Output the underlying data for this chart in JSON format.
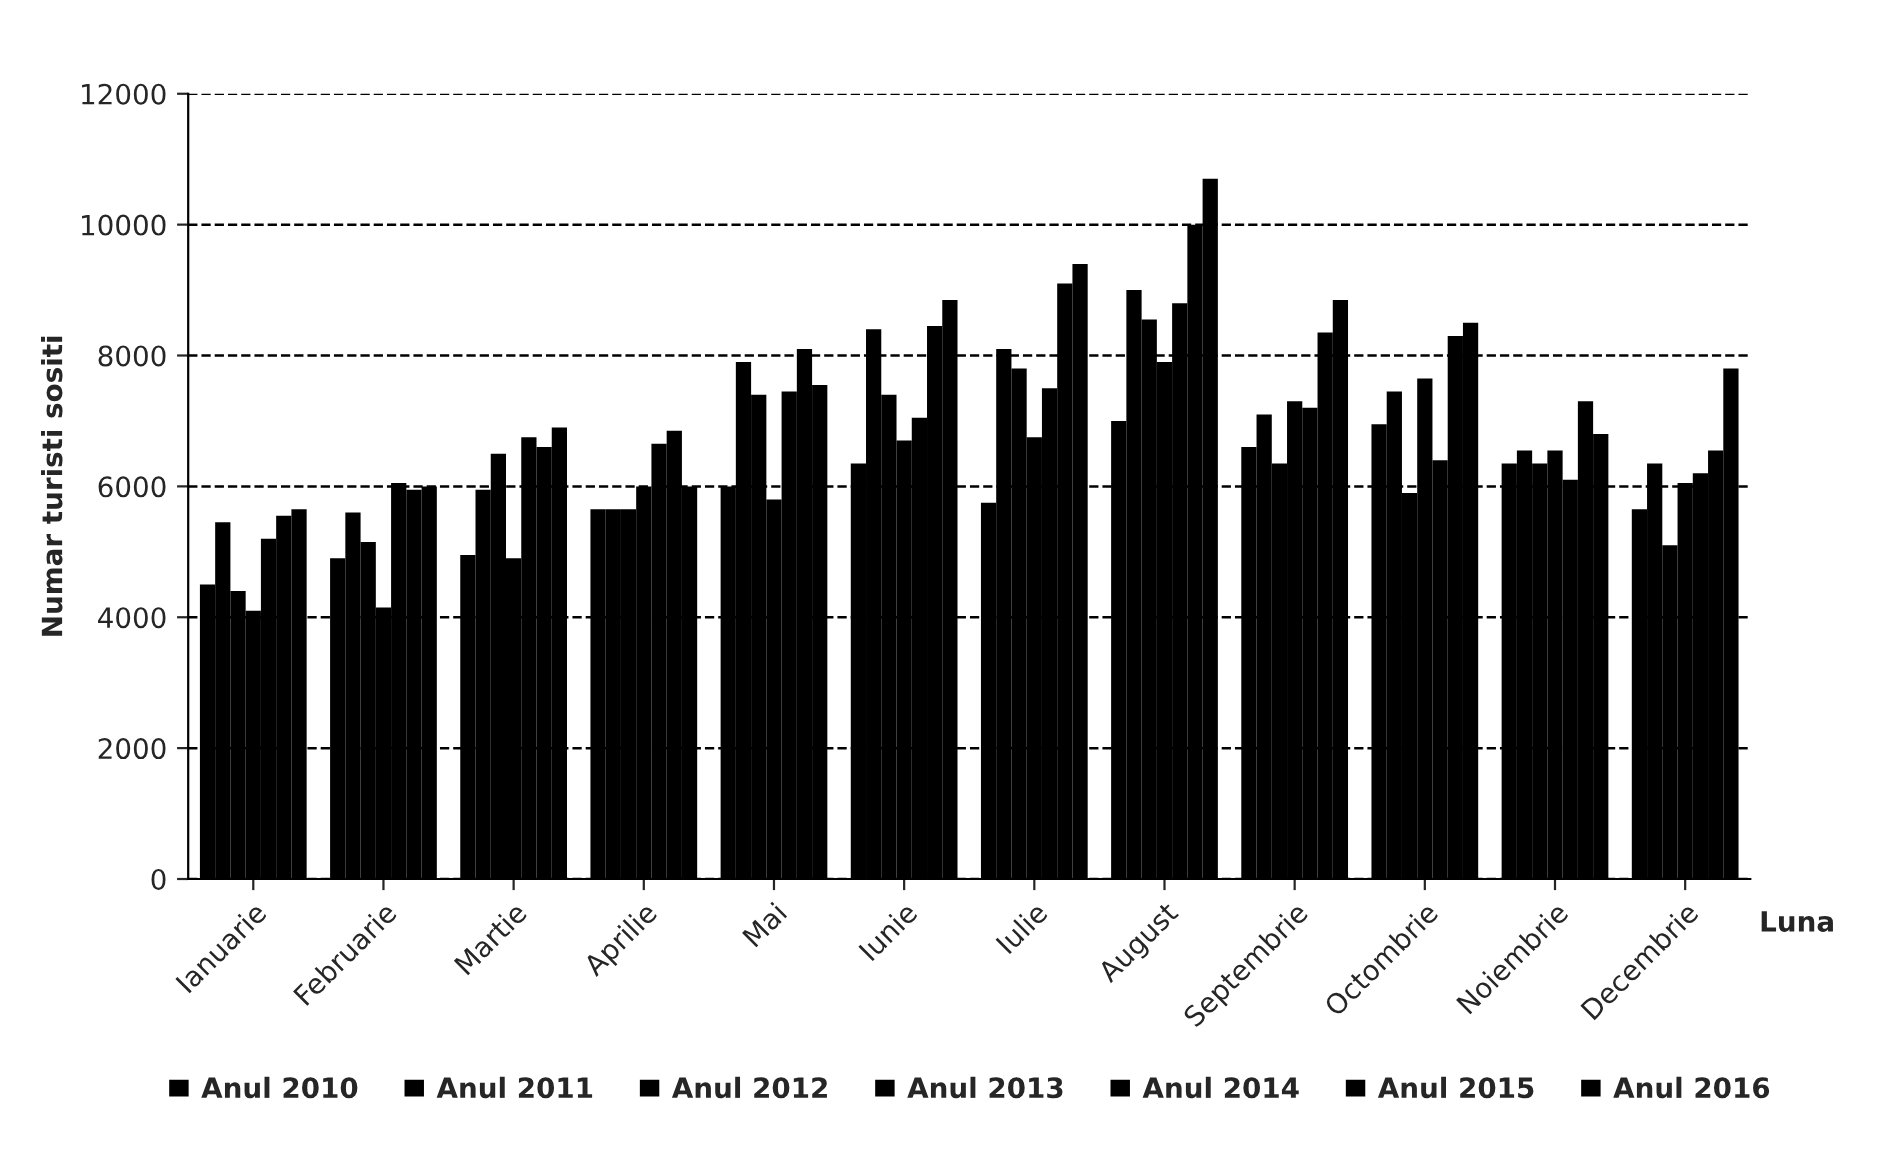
{
  "chart_data": {
    "type": "bar",
    "xlabel": "Luna",
    "ylabel": "Numar turisti sositi",
    "categories": [
      "Ianuarie",
      "Februarie",
      "Martie",
      "Aprilie",
      "Mai",
      "Iunie",
      "Iulie",
      "August",
      "Septembrie",
      "Octombrie",
      "Noiembrie",
      "Decembrie"
    ],
    "series": [
      {
        "name": "Anul 2010",
        "color": "#000000",
        "values": [
          4500,
          4900,
          4950,
          5650,
          6000,
          6350,
          5750,
          7000,
          6600,
          6950,
          6350,
          5650
        ]
      },
      {
        "name": "Anul 2011",
        "color": "#000000",
        "values": [
          5450,
          5600,
          5950,
          5650,
          7900,
          8400,
          8100,
          9000,
          7100,
          7450,
          6550,
          6350
        ]
      },
      {
        "name": "Anul 2012",
        "color": "#000000",
        "values": [
          4400,
          5150,
          6500,
          5650,
          7400,
          7400,
          7800,
          8550,
          6350,
          5900,
          6350,
          5100
        ]
      },
      {
        "name": "Anul 2013",
        "color": "#000000",
        "values": [
          4100,
          4150,
          4900,
          6000,
          5800,
          6700,
          6750,
          7900,
          7300,
          7650,
          6550,
          6050
        ]
      },
      {
        "name": "Anul 2014",
        "color": "#000000",
        "values": [
          5200,
          6050,
          6750,
          6650,
          7450,
          7050,
          7500,
          8800,
          7200,
          6400,
          6100,
          6200
        ]
      },
      {
        "name": "Anul 2015",
        "color": "#000000",
        "values": [
          5550,
          5950,
          6600,
          6850,
          8100,
          8450,
          9100,
          10000,
          8350,
          8300,
          7300,
          6550
        ]
      },
      {
        "name": "Anul 2016",
        "color": "#000000",
        "values": [
          5650,
          6000,
          6900,
          6000,
          7550,
          8850,
          9400,
          10700,
          8850,
          8500,
          6800,
          7800
        ]
      }
    ],
    "ylim": [
      0,
      12000
    ],
    "yticks": [
      0,
      2000,
      4000,
      6000,
      8000,
      10000,
      12000
    ],
    "grid": "y",
    "legend": "bottom"
  }
}
